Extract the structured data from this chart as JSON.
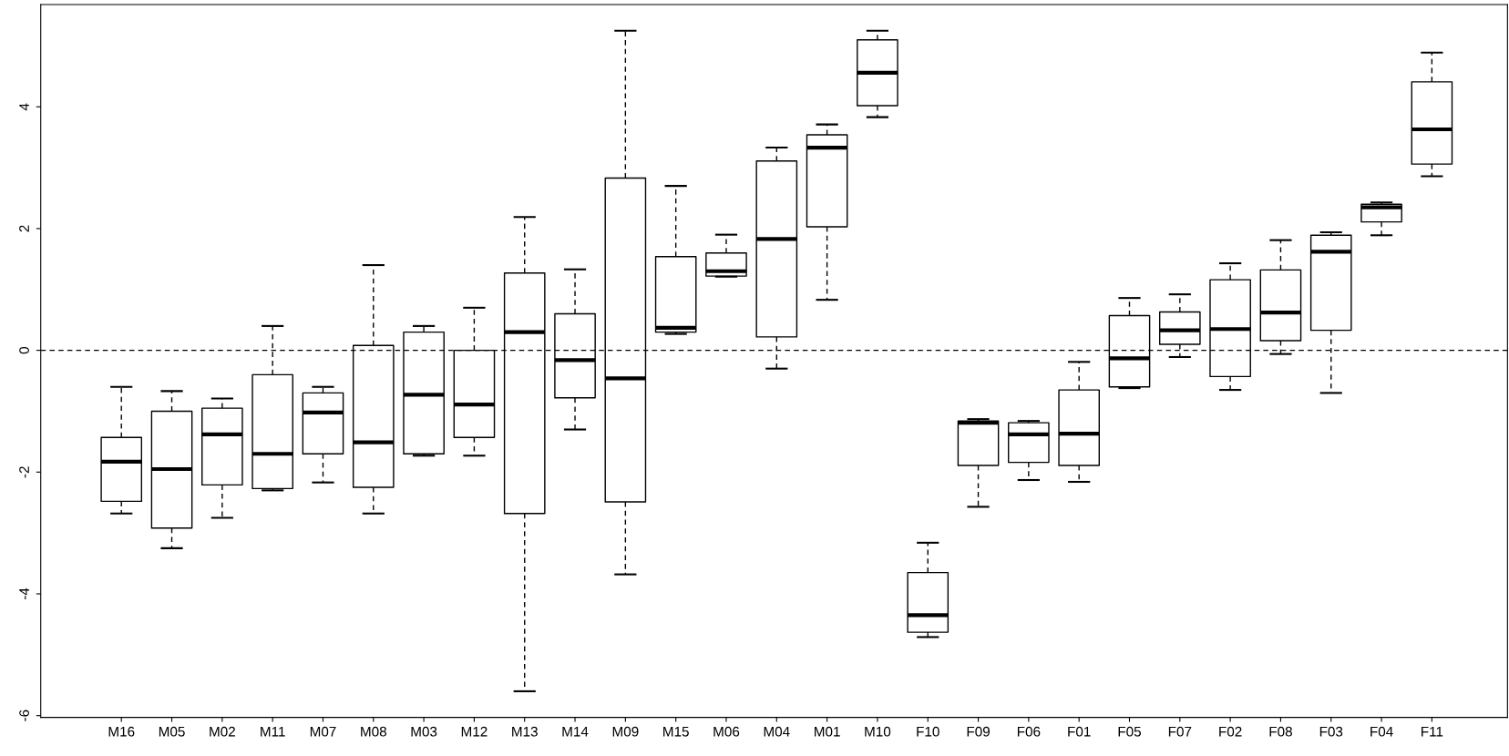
{
  "chart_data": {
    "type": "box",
    "categories": [
      "M16",
      "M05",
      "M02",
      "M11",
      "M07",
      "M08",
      "M03",
      "M12",
      "M13",
      "M14",
      "M09",
      "M15",
      "M06",
      "M04",
      "M01",
      "M10",
      "F10",
      "F09",
      "F06",
      "F01",
      "F05",
      "F07",
      "F02",
      "F08",
      "F03",
      "F04",
      "F11"
    ],
    "boxes": [
      {
        "low": -2.68,
        "q1": -2.48,
        "median": -1.83,
        "q3": -1.43,
        "high": -0.6
      },
      {
        "low": -3.25,
        "q1": -2.92,
        "median": -1.95,
        "q3": -1.0,
        "high": -0.67
      },
      {
        "low": -2.75,
        "q1": -2.21,
        "median": -1.38,
        "q3": -0.95,
        "high": -0.79
      },
      {
        "low": -2.3,
        "q1": -2.27,
        "median": -1.7,
        "q3": -0.4,
        "high": 0.4
      },
      {
        "low": -2.17,
        "q1": -1.7,
        "median": -1.02,
        "q3": -0.7,
        "high": -0.6
      },
      {
        "low": -2.68,
        "q1": -2.25,
        "median": -1.51,
        "q3": 0.08,
        "high": 1.4
      },
      {
        "low": -1.73,
        "q1": -1.7,
        "median": -0.73,
        "q3": 0.3,
        "high": 0.4
      },
      {
        "low": -1.73,
        "q1": -1.43,
        "median": -0.89,
        "q3": 0.0,
        "high": 0.7
      },
      {
        "low": -5.6,
        "q1": -2.68,
        "median": 0.3,
        "q3": 1.27,
        "high": 2.19
      },
      {
        "low": -1.3,
        "q1": -0.78,
        "median": -0.16,
        "q3": 0.6,
        "high": 1.33
      },
      {
        "low": -3.68,
        "q1": -2.49,
        "median": -0.46,
        "q3": 2.83,
        "high": 5.25
      },
      {
        "low": 0.27,
        "q1": 0.3,
        "median": 0.37,
        "q3": 1.54,
        "high": 2.7
      },
      {
        "low": 1.21,
        "q1": 1.22,
        "median": 1.3,
        "q3": 1.6,
        "high": 1.9
      },
      {
        "low": -0.3,
        "q1": 0.22,
        "median": 1.83,
        "q3": 3.11,
        "high": 3.33
      },
      {
        "low": 0.83,
        "q1": 2.03,
        "median": 3.33,
        "q3": 3.54,
        "high": 3.71
      },
      {
        "low": 3.83,
        "q1": 4.02,
        "median": 4.56,
        "q3": 5.1,
        "high": 5.25
      },
      {
        "low": -4.71,
        "q1": -4.63,
        "median": -4.35,
        "q3": -3.65,
        "high": -3.16
      },
      {
        "low": -2.57,
        "q1": -1.89,
        "median": -1.19,
        "q3": -1.16,
        "high": -1.13
      },
      {
        "low": -2.13,
        "q1": -1.84,
        "median": -1.38,
        "q3": -1.19,
        "high": -1.16
      },
      {
        "low": -2.16,
        "q1": -1.89,
        "median": -1.37,
        "q3": -0.65,
        "high": -0.19
      },
      {
        "low": -0.62,
        "q1": -0.6,
        "median": -0.13,
        "q3": 0.57,
        "high": 0.86
      },
      {
        "low": -0.11,
        "q1": 0.1,
        "median": 0.33,
        "q3": 0.63,
        "high": 0.92
      },
      {
        "low": -0.65,
        "q1": -0.43,
        "median": 0.35,
        "q3": 1.16,
        "high": 1.43
      },
      {
        "low": -0.06,
        "q1": 0.16,
        "median": 0.62,
        "q3": 1.32,
        "high": 1.81
      },
      {
        "low": -0.7,
        "q1": 0.33,
        "median": 1.62,
        "q3": 1.89,
        "high": 1.94
      },
      {
        "low": 1.89,
        "q1": 2.11,
        "median": 2.35,
        "q3": 2.4,
        "high": 2.43
      },
      {
        "low": 2.86,
        "q1": 3.06,
        "median": 3.63,
        "q3": 4.41,
        "high": 4.89
      }
    ],
    "ylim": [
      -6.03,
      5.68
    ],
    "yticks": [
      -6,
      -4,
      -2,
      0,
      2,
      4
    ],
    "ref_lines": [
      {
        "axis": "y",
        "value": 0,
        "color": "#000000",
        "line_style": "dashed"
      }
    ],
    "grid": false
  }
}
